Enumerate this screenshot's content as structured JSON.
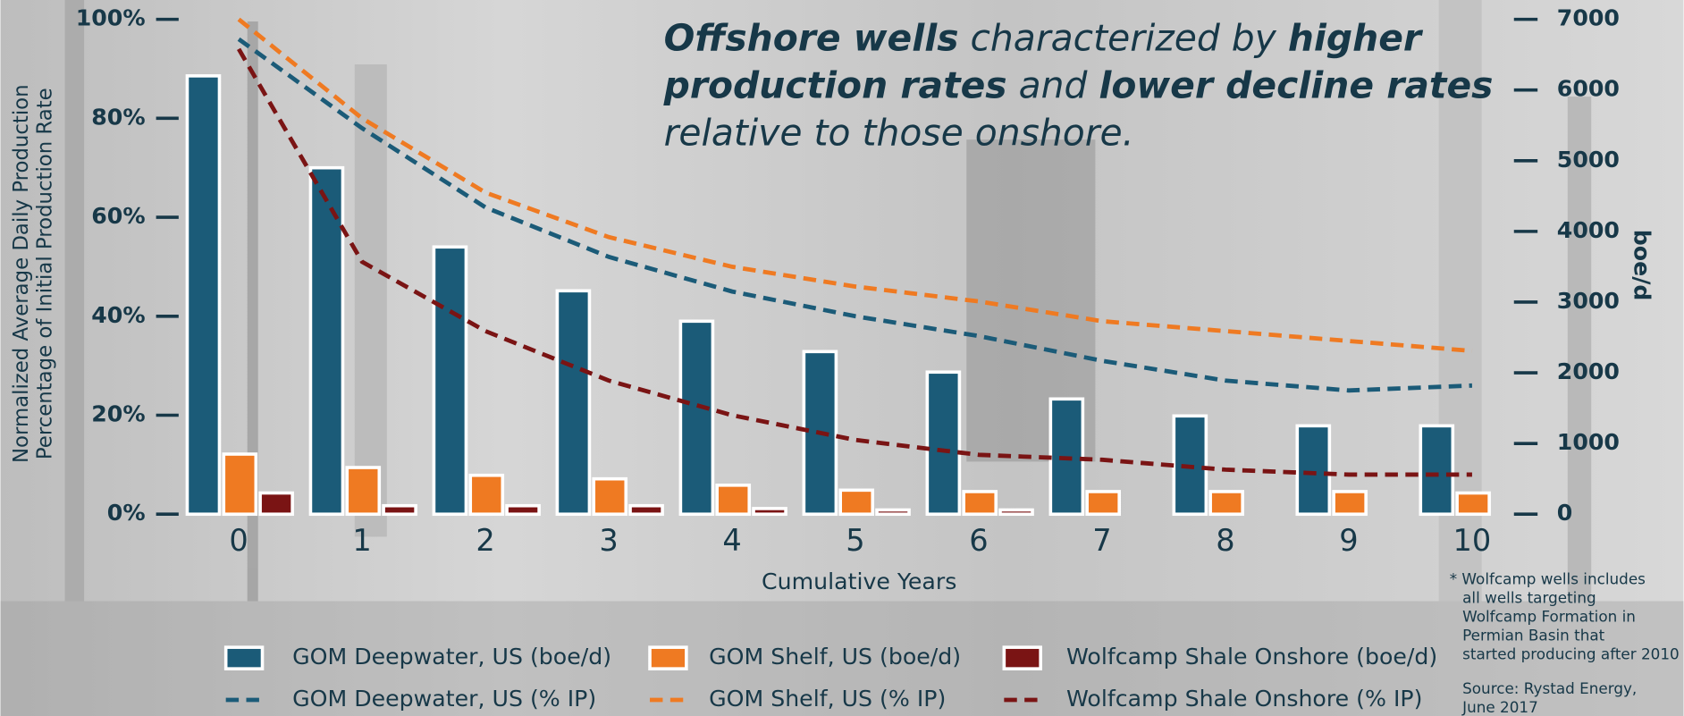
{
  "chart_data": {
    "type": "combo",
    "title_lines": [
      [
        {
          "text": "Offshore wells",
          "bold": true
        },
        {
          "text": " characterized by ",
          "bold": false
        },
        {
          "text": "higher",
          "bold": true
        }
      ],
      [
        {
          "text": "production rates",
          "bold": true
        },
        {
          "text": " and ",
          "bold": false
        },
        {
          "text": "lower decline rates",
          "bold": true
        }
      ],
      [
        {
          "text": "relative to those onshore.",
          "bold": false
        }
      ]
    ],
    "y_label_lines": [
      "Normalized Average Daily Production",
      "Percentage of Initial Production Rate"
    ],
    "y2_label": "boe/d",
    "x_label": "Cumulative Years",
    "categories": [
      0,
      1,
      2,
      3,
      4,
      5,
      6,
      7,
      8,
      9,
      10
    ],
    "ylim": [
      0,
      100
    ],
    "yticks": [
      {
        "value": 0,
        "label": "0%"
      },
      {
        "value": 20,
        "label": "20%"
      },
      {
        "value": 40,
        "label": "40%"
      },
      {
        "value": 60,
        "label": "60%"
      },
      {
        "value": 80,
        "label": "80%"
      },
      {
        "value": 100,
        "label": "100%"
      }
    ],
    "y2lim": [
      0,
      7000
    ],
    "y2ticks": [
      0,
      1000,
      2000,
      3000,
      4000,
      5000,
      6000,
      7000
    ],
    "series": [
      {
        "name": "GOM Deepwater, US (boe/d)",
        "type": "bar",
        "axis": "y2",
        "color": "#1b5b78",
        "values": [
          6200,
          4900,
          3780,
          3160,
          2730,
          2300,
          2010,
          1630,
          1390,
          1250,
          1250
        ]
      },
      {
        "name": "GOM Shelf, US (boe/d)",
        "type": "bar",
        "axis": "y2",
        "color": "#ef7a22",
        "values": [
          850,
          660,
          550,
          500,
          410,
          340,
          320,
          320,
          320,
          320,
          300
        ]
      },
      {
        "name": "Wolfcamp Shale Onshore (boe/d)",
        "type": "bar",
        "axis": "y2",
        "color": "#7a1414",
        "values": [
          300,
          120,
          120,
          120,
          80,
          60,
          60,
          0,
          0,
          0,
          0
        ]
      },
      {
        "name": "GOM Deepwater, US (% IP)",
        "type": "line",
        "axis": "y",
        "color": "#1b5b78",
        "values": [
          96,
          78,
          62,
          52,
          45,
          40,
          36,
          31,
          27,
          25,
          26
        ]
      },
      {
        "name": "GOM Shelf, US  (% IP)",
        "type": "line",
        "axis": "y",
        "color": "#ef7a22",
        "values": [
          100,
          80,
          65,
          56,
          50,
          46,
          43,
          39,
          37,
          35,
          33
        ]
      },
      {
        "name": "Wolfcamp Shale Onshore (% IP)",
        "type": "line",
        "axis": "y",
        "color": "#7a1414",
        "values": [
          94,
          51,
          37,
          27,
          20,
          15,
          12,
          11,
          9,
          8,
          8
        ]
      }
    ],
    "footnote_lines": [
      "* Wolfcamp wells includes",
      "all wells targeting",
      "Wolfcamp Formation in",
      "Permian Basin that",
      "started producing after 2010"
    ],
    "source_lines": [
      "Source: Rystad Energy,",
      "June 2017"
    ]
  }
}
